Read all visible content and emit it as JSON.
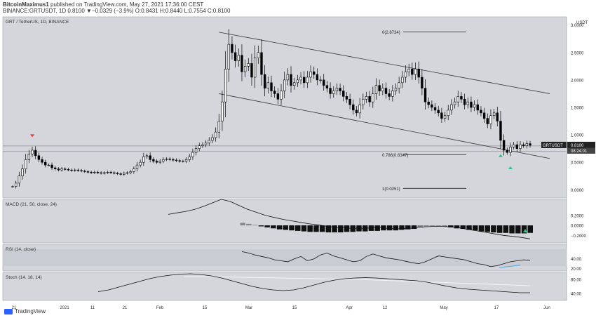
{
  "header": {
    "line1_user": "BitcoinMaximus1",
    "line1_rest": " published on TradingView.com, May 27, 2021 17:36:00 CEST",
    "line2": "BINANCE:GRTUSDT, 1D 0.8100 ▼−0.0329 (−3.9%) O:0.8431 H:0.8440 L:0.7554 C:0.8100"
  },
  "footer": {
    "brand": "TradingView",
    "logo_icon": "tradingview-logo-icon"
  },
  "colors": {
    "pane_bg": "#d4d6dc",
    "border": "#9aa0aa",
    "candle": "#000000",
    "hline": "#a8acb3",
    "signal_red": "#e53935",
    "signal_green": "#26c281",
    "div_blue": "#5aaee0",
    "signal_line": "#f4f4f6"
  },
  "chart_data": [
    {
      "type": "candlestick",
      "title": "GRT / TetherUS, 1D, BINANCE",
      "yaxis_unit": "USDT",
      "ylim": [
        -0.15,
        3.15
      ],
      "yticks": [
        "3.0000",
        "2.5000",
        "2.0000",
        "1.5000",
        "1.0000",
        "0.5000",
        "0.0000"
      ],
      "ytick_values": [
        3.0,
        2.5,
        2.0,
        1.5,
        1.0,
        0.5,
        0.0
      ],
      "x_labels": [
        "21",
        "2021",
        "11",
        "21",
        "Feb",
        "15",
        "Mar",
        "15",
        "Apr",
        "12",
        "May",
        "17",
        "Jun"
      ],
      "last_price_label": "GRTUSDT",
      "last_price": "0.8100",
      "countdown": "08:24:01",
      "close_approx": [
        0.06,
        0.12,
        0.25,
        0.38,
        0.55,
        0.65,
        0.72,
        0.62,
        0.55,
        0.5,
        0.45,
        0.45,
        0.4,
        0.38,
        0.36,
        0.38,
        0.37,
        0.36,
        0.35,
        0.36,
        0.35,
        0.34,
        0.33,
        0.32,
        0.31,
        0.32,
        0.31,
        0.3,
        0.31,
        0.32,
        0.31,
        0.3,
        0.29,
        0.28,
        0.3,
        0.31,
        0.33,
        0.38,
        0.45,
        0.5,
        0.6,
        0.62,
        0.55,
        0.52,
        0.5,
        0.52,
        0.55,
        0.56,
        0.55,
        0.54,
        0.53,
        0.52,
        0.52,
        0.55,
        0.6,
        0.68,
        0.75,
        0.8,
        0.82,
        0.85,
        0.9,
        0.95,
        1.05,
        1.25,
        1.6,
        2.2,
        2.65,
        2.5,
        2.35,
        2.45,
        2.15,
        2.25,
        2.3,
        2.05,
        2.4,
        2.5,
        2.1,
        1.85,
        1.95,
        1.8,
        1.75,
        1.65,
        1.8,
        2.0,
        2.1,
        1.9,
        1.95,
        2.0,
        2.05,
        1.95,
        2.05,
        2.15,
        2.1,
        2.0,
        2.0,
        1.9,
        1.85,
        1.75,
        1.8,
        1.85,
        1.8,
        1.7,
        1.65,
        1.55,
        1.45,
        1.4,
        1.55,
        1.65,
        1.7,
        1.6,
        1.75,
        1.9,
        1.8,
        1.85,
        1.75,
        1.7,
        1.8,
        1.85,
        1.95,
        2.05,
        2.15,
        2.2,
        2.1,
        2.2,
        2.05,
        1.85,
        1.6,
        1.55,
        1.5,
        1.45,
        1.4,
        1.3,
        1.35,
        1.45,
        1.55,
        1.6,
        1.7,
        1.65,
        1.55,
        1.6,
        1.5,
        1.55,
        1.45,
        1.4,
        1.3,
        1.2,
        1.35,
        1.4,
        1.25,
        0.9,
        0.72,
        0.68,
        0.78,
        0.82,
        0.75,
        0.82,
        0.8,
        0.84,
        0.81
      ],
      "annotations": {
        "channel_label": "descending channel",
        "fib_levels": [
          {
            "label": "0(2.8734)",
            "value": 2.8734
          },
          {
            "label": "0.786(0.6347)",
            "value": 0.6347
          },
          {
            "label": "1(0.0251)",
            "value": 0.0251
          }
        ],
        "horizontal_support": [
          0.8,
          0.7
        ],
        "red_marker_index": 6,
        "green_markers_index": [
          149,
          152
        ]
      }
    },
    {
      "type": "histogram+line",
      "title": "MACD (21, 50, close, 24)",
      "yticks": [
        "0.2000",
        "0.0000",
        "−0.2000"
      ],
      "ytick_values": [
        0.2,
        0.0,
        -0.2
      ],
      "ylim": [
        -0.35,
        0.52
      ],
      "macd_line": [
        0.22,
        0.25,
        0.28,
        0.32,
        0.38,
        0.45,
        0.52,
        0.48,
        0.4,
        0.32,
        0.26,
        0.2,
        0.16,
        0.12,
        0.09,
        0.06,
        0.03,
        0.01,
        -0.02,
        -0.04,
        -0.05,
        -0.06,
        -0.06,
        -0.05,
        -0.05,
        -0.06,
        -0.07,
        -0.06,
        -0.05,
        -0.03,
        -0.02,
        -0.02,
        -0.03,
        -0.05,
        -0.08,
        -0.11,
        -0.14,
        -0.17,
        -0.2,
        -0.22,
        -0.24,
        -0.27
      ],
      "histogram": [
        0.05,
        0.03,
        0.01,
        -0.02,
        -0.04,
        -0.06,
        -0.08,
        -0.09,
        -0.1,
        -0.11,
        -0.12,
        -0.13,
        -0.13,
        -0.13,
        -0.14,
        -0.14,
        -0.14,
        -0.13,
        -0.13,
        -0.12,
        -0.12,
        -0.11,
        -0.11,
        -0.1,
        -0.1,
        -0.1,
        -0.09,
        -0.08,
        -0.07,
        -0.05,
        -0.03,
        -0.01,
        0.0,
        -0.02,
        -0.04,
        -0.06,
        -0.07,
        -0.09,
        -0.1,
        -0.12,
        -0.13,
        -0.14,
        -0.15,
        -0.15,
        -0.16,
        -0.16,
        -0.16,
        -0.15
      ]
    },
    {
      "type": "line",
      "title": "RSI (14, close)",
      "yticks": [
        "40.00",
        "20.00"
      ],
      "ytick_values": [
        40,
        20
      ],
      "ylim": [
        15,
        70
      ],
      "values": [
        55,
        52,
        48,
        45,
        42,
        38,
        36,
        34,
        40,
        45,
        36,
        40,
        48,
        52,
        46,
        42,
        38,
        34,
        36,
        45,
        50,
        46,
        42,
        40,
        38,
        35,
        32,
        30,
        34,
        40,
        46,
        44,
        42,
        40,
        38,
        34,
        30,
        28,
        24,
        26,
        30,
        34,
        36,
        38,
        37
      ],
      "divergence_label": "bullish divergence"
    },
    {
      "type": "line",
      "title": "Stoch (14, 18, 14)",
      "yticks": [
        "80.00",
        "40.00"
      ],
      "ytick_values": [
        80,
        40
      ],
      "ylim": [
        20,
        100
      ],
      "k_line": [
        45,
        50,
        58,
        66,
        74,
        82,
        88,
        92,
        95,
        96,
        94,
        90,
        84,
        76,
        68,
        60,
        54,
        50,
        48,
        50,
        56,
        64,
        72,
        78,
        82,
        84,
        85,
        84,
        82,
        80,
        78,
        76,
        72,
        66,
        60,
        55,
        52,
        50,
        48,
        46,
        44,
        42,
        42
      ],
      "d_line": [
        88,
        88,
        87,
        86,
        85,
        84,
        83,
        82,
        81,
        80,
        78,
        76,
        74,
        72,
        70,
        68,
        66,
        64,
        62
      ]
    }
  ]
}
